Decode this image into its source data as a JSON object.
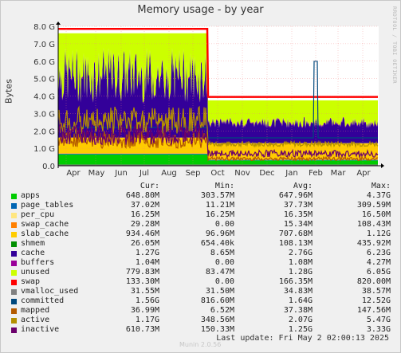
{
  "chart_data": {
    "type": "area",
    "title": "Memory usage - by year",
    "ylabel": "Bytes",
    "ylim": [
      0,
      8.0
    ],
    "yunit": "G",
    "y_ticks": [
      "0.0",
      "1.0 G",
      "2.0 G",
      "3.0 G",
      "4.0 G",
      "5.0 G",
      "6.0 G",
      "7.0 G",
      "8.0 G"
    ],
    "x_ticks": [
      "Apr",
      "May",
      "Jun",
      "Jul",
      "Aug",
      "Sep",
      "Oct",
      "Nov",
      "Dec",
      "Jan",
      "Feb",
      "Mar",
      "Apr"
    ],
    "grid": true,
    "stacked_series": [
      {
        "name": "apps",
        "color": "#00cc00",
        "before": 0.65,
        "after": 0.3
      },
      {
        "name": "page_tables",
        "color": "#0066b3",
        "before": 0.04,
        "after": 0.04
      },
      {
        "name": "per_cpu",
        "color": "#ff8000",
        "before": 0.02,
        "after": 0.02
      },
      {
        "name": "swap_cache",
        "color": "#ffcc00",
        "before": 0.01,
        "after": 0.03
      },
      {
        "name": "slab_cache",
        "color": "#ffcc00",
        "before": 0.9,
        "after": 0.9
      },
      {
        "name": "shmem",
        "color": "#330099",
        "before": 0.05,
        "after": 0.03
      },
      {
        "name": "cache",
        "color": "#330099",
        "before": 3.5,
        "after": 1.2
      },
      {
        "name": "buffers",
        "color": "#990099",
        "before": 0.05,
        "after": 0.05
      },
      {
        "name": "unused",
        "color": "#ccff00",
        "before": 2.4,
        "after": 1.0
      }
    ],
    "line_series": [
      {
        "name": "swap",
        "color": "#ff0000"
      },
      {
        "name": "vmalloc_used",
        "color": "#808080"
      },
      {
        "name": "committed",
        "color": "#00487d"
      },
      {
        "name": "mapped",
        "color": "#b35a00"
      },
      {
        "name": "active",
        "color": "#b38f00"
      },
      {
        "name": "inactive",
        "color": "#6b006b"
      }
    ]
  },
  "legend": {
    "headers": {
      "cur": "Cur:",
      "min": "Min:",
      "avg": "Avg:",
      "max": "Max:"
    },
    "rows": [
      {
        "name": "apps",
        "color": "#00cc00",
        "cur": "648.80M",
        "min": "303.57M",
        "avg": "647.96M",
        "max": "4.37G"
      },
      {
        "name": "page_tables",
        "color": "#0066b3",
        "cur": "37.02M",
        "min": "11.21M",
        "avg": "37.73M",
        "max": "309.59M"
      },
      {
        "name": "per_cpu",
        "color": "#ffe680",
        "cur": "16.25M",
        "min": "16.25M",
        "avg": "16.35M",
        "max": "16.50M"
      },
      {
        "name": "swap_cache",
        "color": "#ff8000",
        "cur": "29.28M",
        "min": "0.00",
        "avg": "15.34M",
        "max": "108.43M"
      },
      {
        "name": "slab_cache",
        "color": "#ffcc00",
        "cur": "934.46M",
        "min": "96.96M",
        "avg": "707.68M",
        "max": "1.12G"
      },
      {
        "name": "shmem",
        "color": "#008f00",
        "cur": "26.05M",
        "min": "654.40k",
        "avg": "108.13M",
        "max": "435.92M"
      },
      {
        "name": "cache",
        "color": "#330099",
        "cur": "1.27G",
        "min": "8.65M",
        "avg": "2.76G",
        "max": "6.23G"
      },
      {
        "name": "buffers",
        "color": "#990099",
        "cur": "1.04M",
        "min": "0.00",
        "avg": "1.08M",
        "max": "4.27M"
      },
      {
        "name": "unused",
        "color": "#ccff00",
        "cur": "779.83M",
        "min": "83.47M",
        "avg": "1.28G",
        "max": "6.05G"
      },
      {
        "name": "swap",
        "color": "#ff0000",
        "cur": "133.30M",
        "min": "0.00",
        "avg": "166.35M",
        "max": "820.00M"
      },
      {
        "name": "vmalloc_used",
        "color": "#808080",
        "cur": "31.55M",
        "min": "31.50M",
        "avg": "34.83M",
        "max": "38.57M"
      },
      {
        "name": "committed",
        "color": "#00487d",
        "cur": "1.56G",
        "min": "816.60M",
        "avg": "1.64G",
        "max": "12.52G"
      },
      {
        "name": "mapped",
        "color": "#b35a00",
        "cur": "36.99M",
        "min": "6.52M",
        "avg": "37.38M",
        "max": "147.56M"
      },
      {
        "name": "active",
        "color": "#b38f00",
        "cur": "1.17G",
        "min": "348.56M",
        "avg": "2.07G",
        "max": "5.47G"
      },
      {
        "name": "inactive",
        "color": "#6b006b",
        "cur": "610.73M",
        "min": "150.33M",
        "avg": "1.25G",
        "max": "3.33G"
      }
    ]
  },
  "footer": {
    "last_update": "Last update: Fri May  2 02:00:13 2025",
    "munin": "Munin 2.0.56",
    "side_text": "RRDTOOL / TOBI OETIKER"
  }
}
